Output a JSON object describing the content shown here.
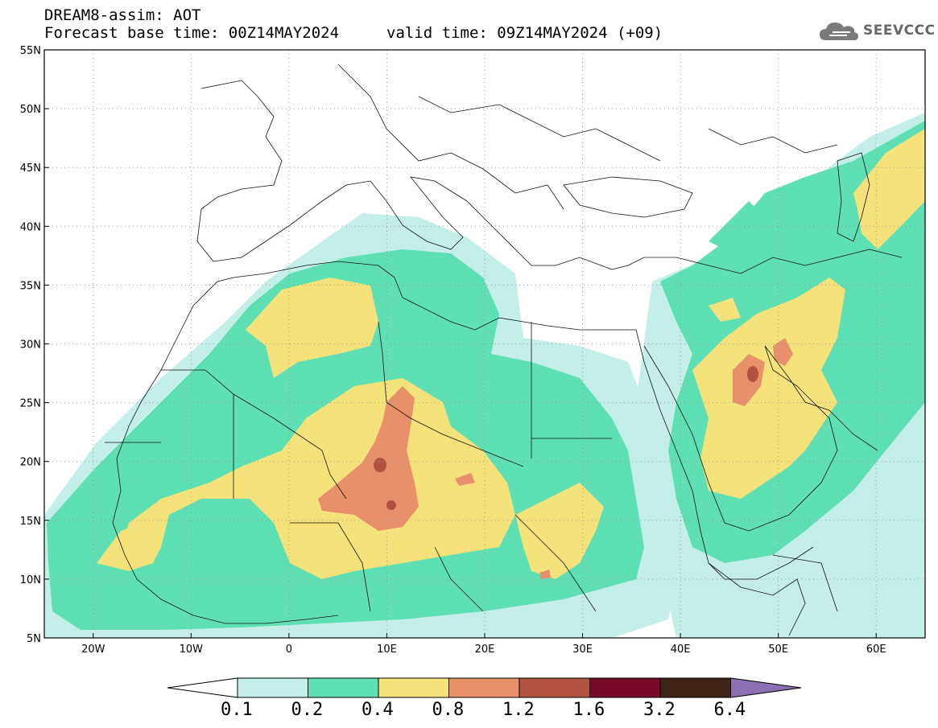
{
  "header": {
    "title": "DREAM8-assim: AOT",
    "base_time": "Forecast base time: 00Z14MAY2024",
    "valid_time": "valid time: 09Z14MAY2024 (+09)"
  },
  "logo": {
    "text": "SEEVCCC",
    "icon": "cloud-icon"
  },
  "map": {
    "lat_range": [
      5,
      55
    ],
    "lon_range": [
      -25,
      65
    ],
    "lat_ticks": [
      "55N",
      "50N",
      "45N",
      "40N",
      "35N",
      "30N",
      "25N",
      "20N",
      "15N",
      "10N",
      "5N"
    ],
    "lon_ticks": [
      "20W",
      "10W",
      "0",
      "10E",
      "20E",
      "30E",
      "40E",
      "50E",
      "60E"
    ],
    "grid": "dotted"
  },
  "colorbar": {
    "labels": [
      "0.1",
      "0.2",
      "0.4",
      "0.8",
      "1.2",
      "1.6",
      "3.2",
      "6.4"
    ],
    "colors": [
      "#ffffff",
      "#c3efe8",
      "#5edfb4",
      "#f5e27a",
      "#e8906a",
      "#b25241",
      "#7a0a2a",
      "#3d2414",
      "#8d6fb3"
    ]
  }
}
